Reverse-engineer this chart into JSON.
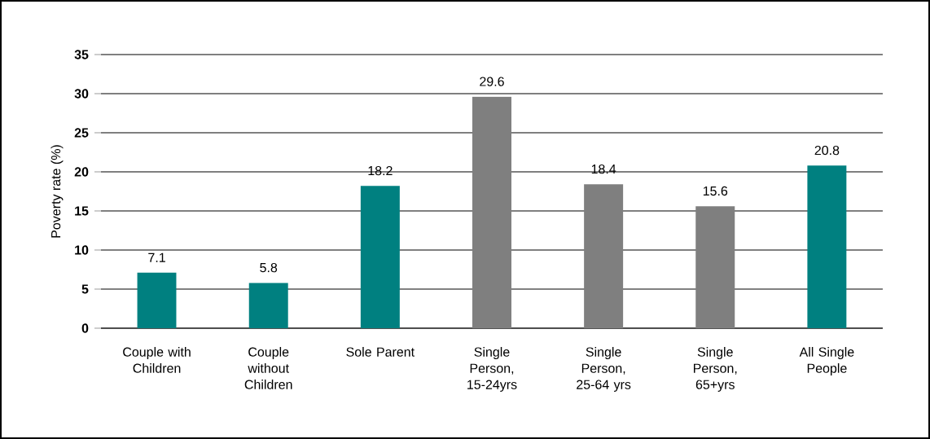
{
  "chart_data": {
    "type": "bar",
    "ylabel": "Poverty rate (%)",
    "categories": [
      "Couple with Children",
      "Couple without Children",
      "Sole Parent",
      "Single Person, 15-24yrs",
      "Single Person, 25-64 yrs",
      "Single Person, 65+yrs",
      "All Single People"
    ],
    "values": [
      7.1,
      5.8,
      18.2,
      29.6,
      18.4,
      15.6,
      20.8
    ],
    "colors": [
      "#008080",
      "#008080",
      "#008080",
      "#7f7f7f",
      "#7f7f7f",
      "#7f7f7f",
      "#008080"
    ],
    "ylim": [
      0,
      35
    ],
    "yticks": [
      0,
      5,
      10,
      15,
      20,
      25,
      30,
      35
    ],
    "grid": "y",
    "data_labels": true
  }
}
